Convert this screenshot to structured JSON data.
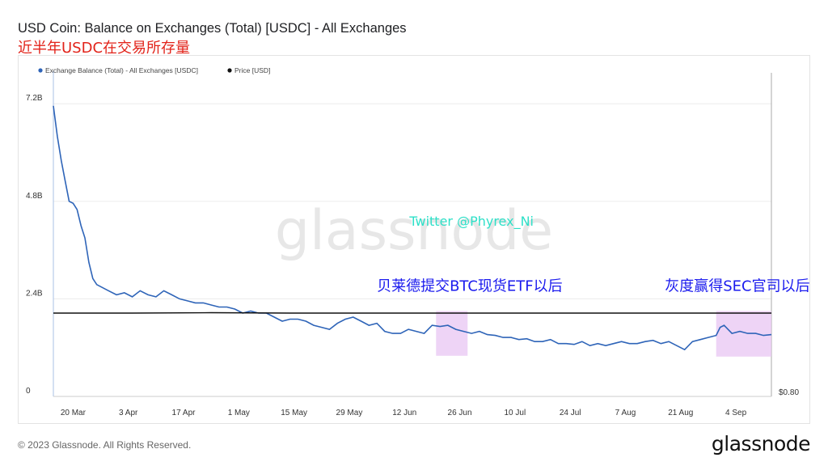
{
  "header": {
    "title": "USD Coin: Balance on Exchanges (Total) [USDC] - All Exchanges",
    "subtitle": "近半年USDC在交易所存量"
  },
  "footer": {
    "copyright": "© 2023 Glassnode. All Rights Reserved.",
    "logo": "glassnode"
  },
  "watermark": "glassnode",
  "colors": {
    "balance": "#2e64b8",
    "price": "#111111",
    "highlight": "#e8c6f3",
    "note_blue": "#1a1aee",
    "note_cyan": "#2ee0c8"
  },
  "chart_data": {
    "type": "line",
    "legend": [
      {
        "name": "Exchange Balance (Total) - All Exchanges [USDC]",
        "color": "#2e64b8"
      },
      {
        "name": "Price [USD]",
        "color": "#111111"
      }
    ],
    "legend_position": "top-left",
    "y_ticks": [
      "7.2B",
      "4.8B",
      "2.4B",
      "0"
    ],
    "y_tick_values": [
      7.2,
      4.8,
      2.4,
      0
    ],
    "ylim": [
      0,
      8.2
    ],
    "y2_tick": "$0.80",
    "x_ticks": [
      "20 Mar",
      "3 Apr",
      "17 Apr",
      "1 May",
      "15 May",
      "29 May",
      "12 Jun",
      "26 Jun",
      "10 Jul",
      "24 Jul",
      "7 Aug",
      "21 Aug",
      "4 Sep"
    ],
    "x_tick_days": [
      5,
      19,
      33,
      47,
      61,
      75,
      89,
      103,
      117,
      131,
      145,
      159,
      173
    ],
    "xlim": [
      0,
      182
    ],
    "grid": "horizontal",
    "series": [
      {
        "name": "Exchange Balance (Total) - All Exchanges [USDC]",
        "x": [
          0,
          1,
          2,
          3,
          4,
          5,
          6,
          7,
          8,
          9,
          10,
          11,
          12,
          14,
          16,
          18,
          20,
          22,
          24,
          26,
          28,
          30,
          32,
          34,
          36,
          38,
          40,
          42,
          44,
          46,
          48,
          50,
          52,
          54,
          56,
          58,
          60,
          62,
          64,
          66,
          68,
          70,
          72,
          74,
          76,
          78,
          80,
          82,
          84,
          86,
          88,
          90,
          92,
          94,
          96,
          98,
          100,
          102,
          104,
          106,
          108,
          110,
          112,
          114,
          116,
          118,
          120,
          122,
          124,
          126,
          128,
          130,
          132,
          134,
          136,
          138,
          140,
          142,
          144,
          146,
          148,
          150,
          152,
          154,
          156,
          158,
          160,
          162,
          164,
          166,
          168,
          169,
          170,
          171,
          172,
          174,
          176,
          178,
          180,
          182
        ],
        "y": [
          7.15,
          6.4,
          5.8,
          5.3,
          4.8,
          4.75,
          4.6,
          4.2,
          3.9,
          3.3,
          2.9,
          2.75,
          2.7,
          2.6,
          2.5,
          2.55,
          2.45,
          2.6,
          2.5,
          2.45,
          2.6,
          2.5,
          2.4,
          2.35,
          2.3,
          2.3,
          2.25,
          2.2,
          2.2,
          2.15,
          2.05,
          2.1,
          2.05,
          2.05,
          1.95,
          1.85,
          1.9,
          1.9,
          1.85,
          1.75,
          1.7,
          1.65,
          1.8,
          1.9,
          1.95,
          1.85,
          1.75,
          1.8,
          1.6,
          1.55,
          1.55,
          1.65,
          1.6,
          1.55,
          1.75,
          1.72,
          1.75,
          1.65,
          1.6,
          1.55,
          1.6,
          1.52,
          1.5,
          1.45,
          1.45,
          1.4,
          1.42,
          1.35,
          1.35,
          1.4,
          1.3,
          1.3,
          1.28,
          1.35,
          1.25,
          1.3,
          1.25,
          1.3,
          1.35,
          1.3,
          1.3,
          1.35,
          1.38,
          1.3,
          1.35,
          1.25,
          1.15,
          1.35,
          1.4,
          1.45,
          1.5,
          1.7,
          1.75,
          1.65,
          1.55,
          1.6,
          1.55,
          1.55,
          1.5,
          1.52
        ]
      },
      {
        "name": "Price [USD]",
        "x": [
          0,
          20,
          40,
          60,
          80,
          100,
          120,
          140,
          160,
          182
        ],
        "y": [
          2.05,
          2.05,
          2.06,
          2.05,
          2.05,
          2.05,
          2.05,
          2.05,
          2.05,
          2.05
        ]
      }
    ],
    "annotations": [
      {
        "text": "Twitter @Phyrex_Ni",
        "x": 106,
        "y": 4.2,
        "style": "cyan"
      },
      {
        "text": "贝莱德提交BTC现货ETF以后",
        "x": 82,
        "y": 2.6,
        "style": "blue"
      },
      {
        "text": "灰度赢得SEC官司以后",
        "x": 155,
        "y": 2.6,
        "style": "blue"
      }
    ],
    "highlights": [
      {
        "x_start": 97,
        "x_end": 105,
        "y_start": 1.0,
        "y_end": 2.1
      },
      {
        "x_start": 168,
        "x_end": 182,
        "y_start": 0.98,
        "y_end": 2.1
      }
    ]
  }
}
